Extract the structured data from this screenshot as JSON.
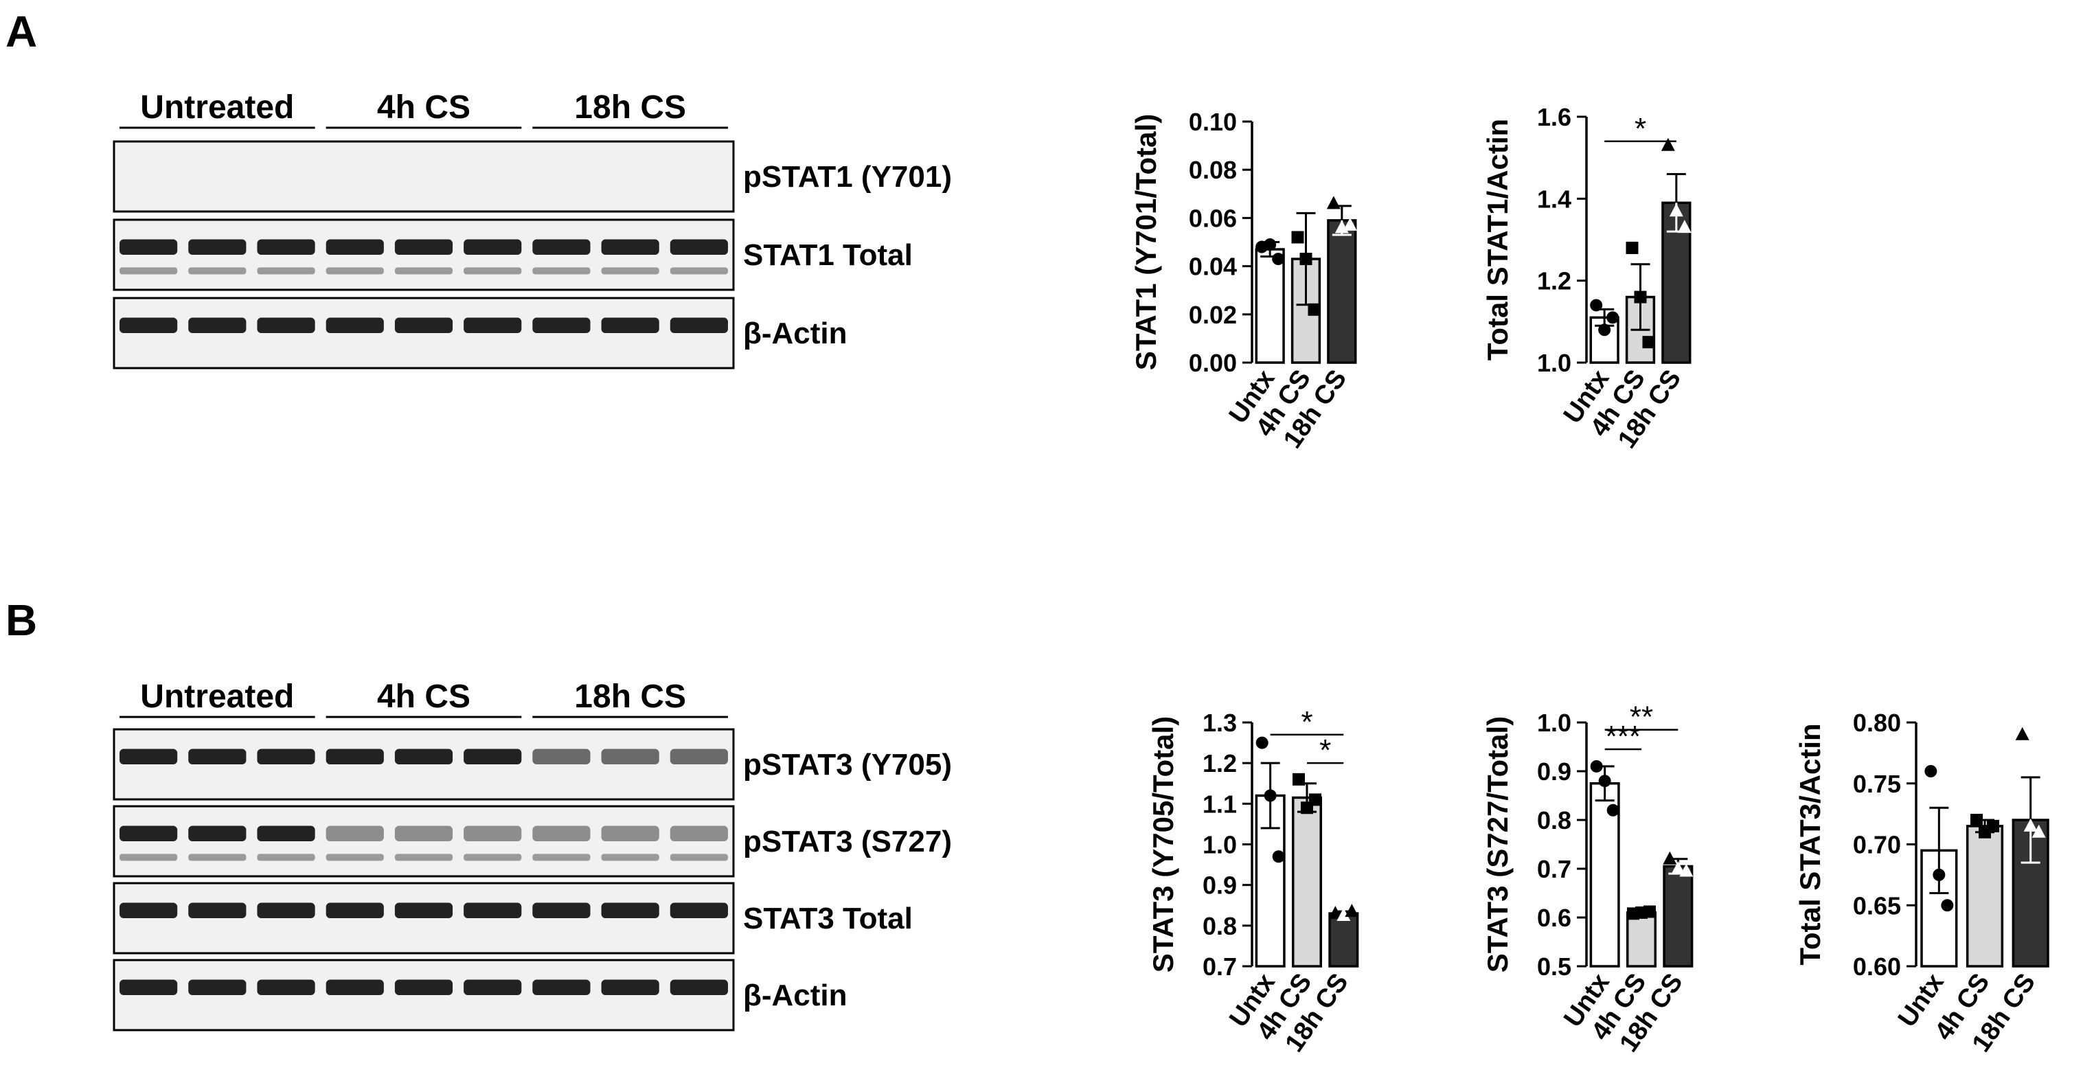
{
  "panels": [
    {
      "letter": "A",
      "lane_groups": [
        "Untreated",
        "4h CS",
        "18h CS"
      ],
      "blots": [
        {
          "label": "pSTAT1 (Y701)",
          "bands": 0
        },
        {
          "label": "STAT1 Total",
          "bands": 2
        },
        {
          "label": "β-Actin",
          "bands": 1
        }
      ]
    },
    {
      "letter": "B",
      "lane_groups": [
        "Untreated",
        "4h CS",
        "18h CS"
      ],
      "blots": [
        {
          "label": "pSTAT3 (Y705)",
          "bands": 1
        },
        {
          "label": "pSTAT3 (S727)",
          "bands": 2
        },
        {
          "label": "STAT3 Total",
          "bands": 1
        },
        {
          "label": "β-Actin",
          "bands": 1
        }
      ]
    }
  ],
  "chart_data": [
    {
      "type": "bar",
      "ylabel": "STAT1 (Y701/Total)",
      "categories": [
        "Untx",
        "4h CS",
        "18h CS"
      ],
      "values": [
        0.047,
        0.043,
        0.059
      ],
      "sem": [
        0.003,
        0.019,
        0.006
      ],
      "points": [
        [
          0.048,
          0.049,
          0.043
        ],
        [
          0.052,
          0.043,
          0.022
        ],
        [
          0.066,
          0.056,
          0.057
        ]
      ],
      "markers": [
        "circle",
        "square",
        "triangle"
      ],
      "ylim": [
        0,
        0.1
      ],
      "yticks": [
        "0.00",
        "0.02",
        "0.04",
        "0.06",
        "0.08",
        "0.10"
      ],
      "significance": []
    },
    {
      "type": "bar",
      "ylabel": "Total STAT1/Actin",
      "categories": [
        "Untx",
        "4h CS",
        "18h CS"
      ],
      "values": [
        1.11,
        1.16,
        1.39
      ],
      "sem": [
        0.02,
        0.08,
        0.07
      ],
      "points": [
        [
          1.14,
          1.08,
          1.11
        ],
        [
          1.28,
          1.16,
          1.05
        ],
        [
          1.53,
          1.37,
          1.33
        ]
      ],
      "markers": [
        "circle",
        "square",
        "triangle"
      ],
      "ylim": [
        1.0,
        1.6
      ],
      "yticks": [
        "1.0",
        "1.2",
        "1.4",
        "1.6"
      ],
      "significance": [
        {
          "from": 0,
          "to": 2,
          "label": "*",
          "y": 1.54
        }
      ]
    },
    {
      "type": "bar",
      "ylabel": "STAT3 (Y705/Total)",
      "categories": [
        "Untx",
        "4h CS",
        "18h CS"
      ],
      "values": [
        1.12,
        1.115,
        0.83
      ],
      "sem": [
        0.08,
        0.035,
        0.005
      ],
      "points": [
        [
          1.25,
          1.12,
          0.97
        ],
        [
          1.16,
          1.09,
          1.11
        ],
        [
          0.83,
          0.825,
          0.835
        ]
      ],
      "markers": [
        "circle",
        "square",
        "triangle"
      ],
      "ylim": [
        0.7,
        1.3
      ],
      "yticks": [
        "0.7",
        "0.8",
        "0.9",
        "1.0",
        "1.1",
        "1.2",
        "1.3"
      ],
      "significance": [
        {
          "from": 0,
          "to": 2,
          "label": "*",
          "y": 1.27
        },
        {
          "from": 1,
          "to": 2,
          "label": "*",
          "y": 1.2
        }
      ]
    },
    {
      "type": "bar",
      "ylabel": "STAT3 (S727/Total)",
      "categories": [
        "Untx",
        "4h CS",
        "18h CS"
      ],
      "values": [
        0.875,
        0.61,
        0.705
      ],
      "sem": [
        0.035,
        0.005,
        0.015
      ],
      "points": [
        [
          0.91,
          0.88,
          0.82
        ],
        [
          0.608,
          0.61,
          0.612
        ],
        [
          0.72,
          0.7,
          0.695
        ]
      ],
      "markers": [
        "circle",
        "square",
        "triangle"
      ],
      "ylim": [
        0.5,
        1.0
      ],
      "yticks": [
        "0.5",
        "0.6",
        "0.7",
        "0.8",
        "0.9",
        "1.0"
      ],
      "significance": [
        {
          "from": 0,
          "to": 2,
          "label": "**",
          "y": 0.985
        },
        {
          "from": 0,
          "to": 1,
          "label": "***",
          "y": 0.945
        }
      ]
    },
    {
      "type": "bar",
      "ylabel": "Total STAT3/Actin",
      "categories": [
        "Untx",
        "4h CS",
        "18h CS"
      ],
      "values": [
        0.695,
        0.715,
        0.72
      ],
      "sem": [
        0.035,
        0.005,
        0.035
      ],
      "points": [
        [
          0.76,
          0.675,
          0.65
        ],
        [
          0.72,
          0.71,
          0.715
        ],
        [
          0.79,
          0.715,
          0.71
        ]
      ],
      "markers": [
        "circle",
        "square",
        "triangle"
      ],
      "ylim": [
        0.6,
        0.8
      ],
      "yticks": [
        "0.60",
        "0.65",
        "0.70",
        "0.75",
        "0.80"
      ],
      "significance": []
    }
  ],
  "colors": {
    "untx": "#ffffff",
    "cs4h": "#d9d9d9",
    "cs18h": "#333333",
    "ink": "#000000"
  }
}
